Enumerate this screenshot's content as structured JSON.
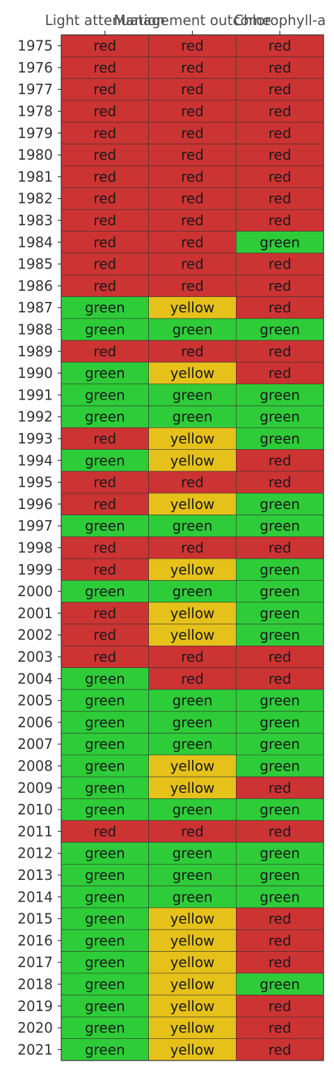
{
  "chart_data": {
    "type": "heatmap",
    "title": "",
    "xlabel": "",
    "ylabel": "",
    "columns": [
      "Light attenuation",
      "Management outcome",
      "Chlorophyll-a"
    ],
    "rows": [
      "1975",
      "1976",
      "1977",
      "1978",
      "1979",
      "1980",
      "1981",
      "1982",
      "1983",
      "1984",
      "1985",
      "1986",
      "1987",
      "1988",
      "1989",
      "1990",
      "1991",
      "1992",
      "1993",
      "1994",
      "1995",
      "1996",
      "1997",
      "1998",
      "1999",
      "2000",
      "2001",
      "2002",
      "2003",
      "2004",
      "2005",
      "2006",
      "2007",
      "2008",
      "2009",
      "2010",
      "2011",
      "2012",
      "2013",
      "2014",
      "2015",
      "2016",
      "2017",
      "2018",
      "2019",
      "2020",
      "2021"
    ],
    "values": [
      [
        "red",
        "red",
        "red"
      ],
      [
        "red",
        "red",
        "red"
      ],
      [
        "red",
        "red",
        "red"
      ],
      [
        "red",
        "red",
        "red"
      ],
      [
        "red",
        "red",
        "red"
      ],
      [
        "red",
        "red",
        "red"
      ],
      [
        "red",
        "red",
        "red"
      ],
      [
        "red",
        "red",
        "red"
      ],
      [
        "red",
        "red",
        "red"
      ],
      [
        "red",
        "red",
        "green"
      ],
      [
        "red",
        "red",
        "red"
      ],
      [
        "red",
        "red",
        "red"
      ],
      [
        "green",
        "yellow",
        "red"
      ],
      [
        "green",
        "green",
        "green"
      ],
      [
        "red",
        "red",
        "red"
      ],
      [
        "green",
        "yellow",
        "red"
      ],
      [
        "green",
        "green",
        "green"
      ],
      [
        "green",
        "green",
        "green"
      ],
      [
        "red",
        "yellow",
        "green"
      ],
      [
        "green",
        "yellow",
        "red"
      ],
      [
        "red",
        "red",
        "red"
      ],
      [
        "red",
        "yellow",
        "green"
      ],
      [
        "green",
        "green",
        "green"
      ],
      [
        "red",
        "red",
        "red"
      ],
      [
        "red",
        "yellow",
        "green"
      ],
      [
        "green",
        "green",
        "green"
      ],
      [
        "red",
        "yellow",
        "green"
      ],
      [
        "red",
        "yellow",
        "green"
      ],
      [
        "red",
        "red",
        "red"
      ],
      [
        "green",
        "red",
        "red"
      ],
      [
        "green",
        "green",
        "green"
      ],
      [
        "green",
        "green",
        "green"
      ],
      [
        "green",
        "green",
        "green"
      ],
      [
        "green",
        "yellow",
        "green"
      ],
      [
        "green",
        "yellow",
        "red"
      ],
      [
        "green",
        "green",
        "green"
      ],
      [
        "red",
        "red",
        "red"
      ],
      [
        "green",
        "green",
        "green"
      ],
      [
        "green",
        "green",
        "green"
      ],
      [
        "green",
        "green",
        "green"
      ],
      [
        "green",
        "yellow",
        "red"
      ],
      [
        "green",
        "yellow",
        "red"
      ],
      [
        "green",
        "yellow",
        "red"
      ],
      [
        "green",
        "yellow",
        "green"
      ],
      [
        "green",
        "yellow",
        "red"
      ],
      [
        "green",
        "yellow",
        "red"
      ],
      [
        "green",
        "yellow",
        "red"
      ]
    ],
    "colors": {
      "red": "#CC3333",
      "yellow": "#E6C11A",
      "green": "#2ECC38"
    },
    "legend": "none",
    "grid": false
  }
}
